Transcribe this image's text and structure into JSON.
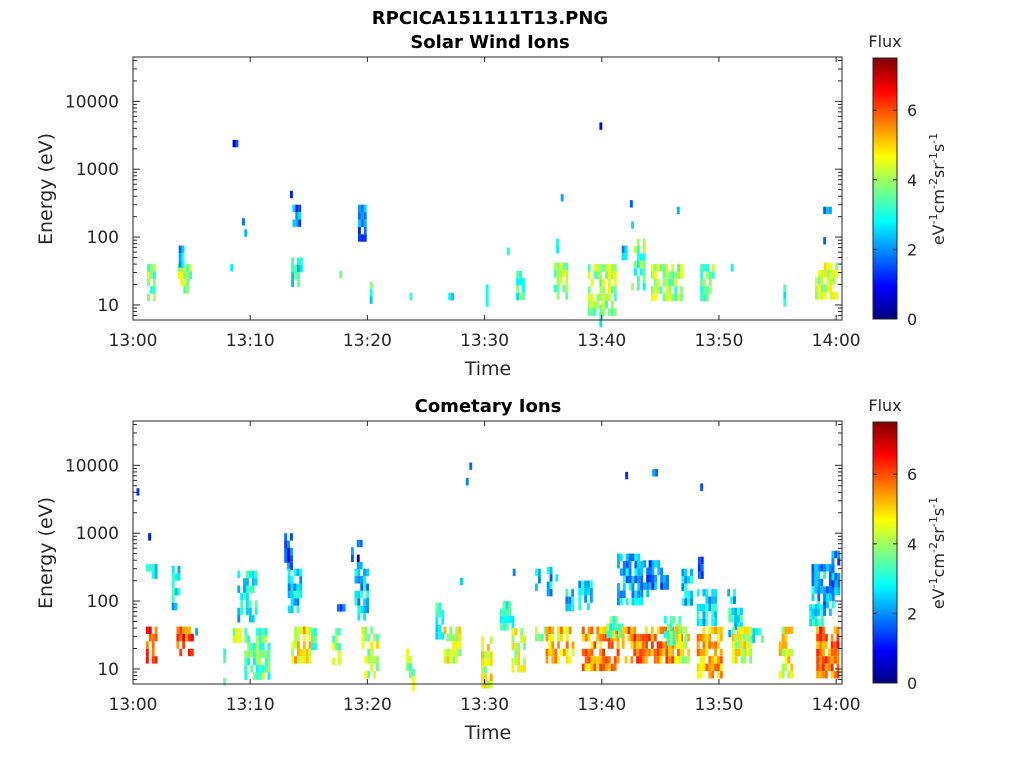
{
  "figure_title": "RPCICA151111T13.PNG",
  "colors": {
    "axis": "#262626",
    "colormap": [
      "#00007f",
      "#0000ff",
      "#007fff",
      "#00ffff",
      "#7fff7f",
      "#ffff00",
      "#ff7f00",
      "#ff0000",
      "#7f0000"
    ]
  },
  "chart_data": [
    {
      "type": "heatmap",
      "title": "Solar Wind Ions",
      "xlabel": "Time",
      "ylabel": "Energy (eV)",
      "xticks": [
        "13:00",
        "13:10",
        "13:20",
        "13:30",
        "13:40",
        "13:50",
        "14:00"
      ],
      "xlim_min": [
        0,
        60.5
      ],
      "yscale": "log",
      "ylim": [
        6,
        45000
      ],
      "yticks": [
        10,
        100,
        1000,
        10000
      ],
      "yticklabels": [
        "10",
        "100",
        "1000",
        "10000"
      ],
      "colorbar": {
        "label": "Flux",
        "unit": "eV-1cm-2sr-1s-1",
        "range": [
          0,
          7.5
        ],
        "ticks": [
          "0",
          "2",
          "4",
          "6"
        ]
      },
      "clusters": [
        [
          1.2,
          1.8,
          14,
          40,
          3.5
        ],
        [
          3.8,
          5.0,
          18,
          40,
          4.0
        ],
        [
          3.9,
          4.3,
          45,
          75,
          2.5
        ],
        [
          8.5,
          8.8,
          2400,
          2700,
          1.5
        ],
        [
          8.3,
          8.5,
          33,
          40,
          2.8
        ],
        [
          9.3,
          9.5,
          170,
          190,
          1.8
        ],
        [
          9.5,
          9.7,
          120,
          130,
          2.0
        ],
        [
          13.4,
          13.6,
          420,
          480,
          1.5
        ],
        [
          13.6,
          14.2,
          180,
          300,
          1.8
        ],
        [
          13.5,
          14.3,
          22,
          50,
          3.0
        ],
        [
          17.6,
          17.8,
          28,
          32,
          3.6
        ],
        [
          19.2,
          19.7,
          100,
          300,
          1.8
        ],
        [
          20.2,
          20.4,
          12,
          22,
          3.2
        ],
        [
          23.6,
          23.8,
          12,
          15,
          3.0
        ],
        [
          26.9,
          27.2,
          12,
          15,
          3.0
        ],
        [
          30.1,
          30.3,
          12,
          20,
          3.5
        ],
        [
          31.9,
          32.1,
          60,
          70,
          2.5
        ],
        [
          32.7,
          33.4,
          15,
          32,
          3.2
        ],
        [
          35.9,
          36.9,
          12,
          42,
          3.8
        ],
        [
          36.1,
          36.3,
          65,
          95,
          2.6
        ],
        [
          36.5,
          36.7,
          400,
          430,
          2.0
        ],
        [
          38.8,
          41.2,
          8,
          40,
          4.0
        ],
        [
          39.8,
          40.0,
          6,
          10,
          3.0
        ],
        [
          39.8,
          40.0,
          4700,
          4900,
          1.5
        ],
        [
          41.7,
          42.0,
          55,
          75,
          2.5
        ],
        [
          42.5,
          43.7,
          18,
          95,
          3.5
        ],
        [
          42.4,
          42.6,
          320,
          350,
          1.5
        ],
        [
          42.5,
          42.7,
          150,
          170,
          2.0
        ],
        [
          44.2,
          46.7,
          12,
          40,
          4.0
        ],
        [
          46.4,
          46.6,
          260,
          280,
          1.8
        ],
        [
          48.4,
          49.4,
          12,
          40,
          3.6
        ],
        [
          51.0,
          51.2,
          33,
          40,
          3.0
        ],
        [
          55.5,
          55.7,
          12,
          20,
          2.8
        ],
        [
          58.2,
          60.1,
          15,
          42,
          4.2
        ],
        [
          58.9,
          59.1,
          90,
          100,
          1.8
        ],
        [
          58.9,
          59.6,
          240,
          280,
          2.3
        ]
      ]
    },
    {
      "type": "heatmap",
      "title": "Cometary Ions",
      "xlabel": "Time",
      "ylabel": "Energy (eV)",
      "xticks": [
        "13:00",
        "13:10",
        "13:20",
        "13:30",
        "13:40",
        "13:50",
        "14:00"
      ],
      "xlim_min": [
        0,
        60.5
      ],
      "yscale": "log",
      "ylim": [
        6,
        45000
      ],
      "yticks": [
        10,
        100,
        1000,
        10000
      ],
      "yticklabels": [
        "10",
        "100",
        "1000",
        "10000"
      ],
      "colorbar": {
        "label": "Flux",
        "unit": "eV-1cm-2sr-1s-1",
        "range": [
          0,
          7.5
        ],
        "ticks": [
          "0",
          "2",
          "4",
          "6"
        ]
      },
      "clusters": [
        [
          0.3,
          0.4,
          4300,
          4600,
          1.5
        ],
        [
          1.3,
          1.5,
          900,
          1000,
          1.5
        ],
        [
          1.1,
          2.0,
          250,
          350,
          2.5
        ],
        [
          1.1,
          2.0,
          15,
          42,
          6.0
        ],
        [
          3.3,
          4.0,
          80,
          330,
          2.8
        ],
        [
          3.7,
          5.0,
          18,
          42,
          6.0
        ],
        [
          5.3,
          5.5,
          33,
          40,
          3.0
        ],
        [
          7.7,
          7.9,
          6,
          20,
          3.0
        ],
        [
          8.5,
          9.0,
          30,
          40,
          4.2
        ],
        [
          8.9,
          10.5,
          60,
          280,
          2.8
        ],
        [
          9.5,
          11.5,
          8,
          40,
          3.5
        ],
        [
          12.9,
          13.6,
          300,
          1000,
          1.5
        ],
        [
          13.2,
          14.2,
          80,
          300,
          2.5
        ],
        [
          13.5,
          15.0,
          12,
          42,
          4.8
        ],
        [
          15.2,
          15.6,
          20,
          40,
          3.2
        ],
        [
          17.0,
          17.6,
          12,
          40,
          3.8
        ],
        [
          17.4,
          18.0,
          80,
          90,
          2.0
        ],
        [
          18.6,
          19.4,
          300,
          800,
          1.5
        ],
        [
          18.9,
          20.0,
          60,
          300,
          2.5
        ],
        [
          19.5,
          20.8,
          8,
          42,
          4.2
        ],
        [
          23.3,
          23.7,
          8,
          20,
          3.8
        ],
        [
          23.8,
          24.0,
          6,
          10,
          3.8
        ],
        [
          25.8,
          26.5,
          30,
          95,
          3.0
        ],
        [
          26.5,
          27.8,
          12,
          42,
          4.5
        ],
        [
          27.9,
          28.1,
          180,
          220,
          2.2
        ],
        [
          28.4,
          28.6,
          6000,
          6500,
          1.5
        ],
        [
          28.7,
          28.9,
          10000,
          11000,
          1.5
        ],
        [
          29.7,
          30.5,
          6,
          30,
          4.5
        ],
        [
          31.3,
          32.5,
          40,
          100,
          3.0
        ],
        [
          32.4,
          32.6,
          250,
          300,
          2.5
        ],
        [
          32.3,
          33.5,
          10,
          40,
          4.3
        ],
        [
          34.3,
          35.0,
          150,
          300,
          2.5
        ],
        [
          34.3,
          35.3,
          28,
          42,
          4.0
        ],
        [
          35.3,
          36.1,
          120,
          320,
          2.4
        ],
        [
          35.2,
          37.6,
          12,
          42,
          5.0
        ],
        [
          36.9,
          37.6,
          80,
          150,
          2.6
        ],
        [
          38.0,
          39.0,
          80,
          200,
          2.4
        ],
        [
          38.3,
          41.3,
          10,
          42,
          5.5
        ],
        [
          40.4,
          41.7,
          35,
          60,
          3.5
        ],
        [
          41.3,
          43.3,
          100,
          500,
          2.3
        ],
        [
          42.0,
          42.2,
          7500,
          8000,
          1.5
        ],
        [
          41.7,
          43.7,
          15,
          42,
          5.7
        ],
        [
          43.3,
          44.0,
          120,
          400,
          2.0
        ],
        [
          44.3,
          44.6,
          8300,
          8800,
          1.5
        ],
        [
          44.0,
          45.6,
          150,
          400,
          1.9
        ],
        [
          43.7,
          46.7,
          12,
          42,
          5.5
        ],
        [
          45.3,
          46.6,
          25,
          60,
          3.6
        ],
        [
          46.3,
          47.3,
          15,
          42,
          4.5
        ],
        [
          46.8,
          47.6,
          100,
          300,
          2.5
        ],
        [
          48.2,
          48.6,
          250,
          450,
          1.8
        ],
        [
          48.4,
          48.6,
          5000,
          5400,
          1.5
        ],
        [
          48.1,
          49.6,
          50,
          150,
          2.6
        ],
        [
          48.1,
          50.2,
          8,
          42,
          5.2
        ],
        [
          50.7,
          51.3,
          100,
          150,
          2.5
        ],
        [
          50.8,
          51.9,
          35,
          80,
          2.8
        ],
        [
          51.1,
          52.6,
          12,
          42,
          4.5
        ],
        [
          52.6,
          53.6,
          28,
          40,
          3.0
        ],
        [
          55.1,
          56.1,
          8,
          42,
          4.6
        ],
        [
          57.7,
          58.7,
          45,
          90,
          3.0
        ],
        [
          57.9,
          59.8,
          70,
          350,
          2.3
        ],
        [
          58.3,
          60.2,
          8,
          42,
          5.8
        ],
        [
          59.6,
          60.3,
          140,
          550,
          2.0
        ]
      ]
    }
  ]
}
